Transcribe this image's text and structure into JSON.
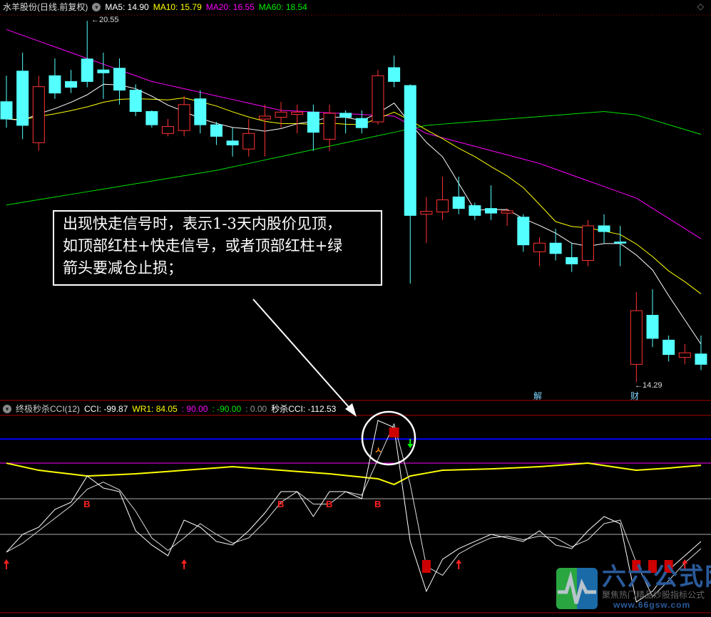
{
  "header": {
    "title": "水羊股份(日线.前复权)",
    "ma5": "MA5: 14.90",
    "ma10": "MA10: 15.79",
    "ma20": "MA20: 16.55",
    "ma60": "MA60: 18.54",
    "colors": {
      "ma5": "#ffffff",
      "ma10": "#ffff00",
      "ma20": "#ff00ff",
      "ma60": "#00e000"
    }
  },
  "indicator_header": {
    "name": "终极秒杀CCI(12)",
    "cci": "CCI: -99.87",
    "wr1": "WR1: 84.05",
    "v90": ": 90.00",
    "vm90": ": -90.00",
    "v0": ": 0.00",
    "mscci": "秒杀CCI: -112.53"
  },
  "price_labels": {
    "high": "20.55",
    "low": "14.29"
  },
  "events": [
    {
      "label": "解",
      "index": 33
    },
    {
      "label": "财",
      "index": 39
    }
  ],
  "annotation": {
    "lines": [
      "出现快走信号时，表示1-3天内股价见顶，",
      "如顶部红柱+快走信号，或者顶部红柱+绿",
      "箭头要减仓止损；"
    ]
  },
  "logo": {
    "name": "六六公式网",
    "slogan": "聚焦热门精品炒股指标公式",
    "url": "www.66gsw.com"
  },
  "colors": {
    "up": "#ff3333",
    "down": "#54ffff",
    "blue_line": "#0000ff",
    "marker_red": "#cc0000"
  },
  "chart_data": [
    {
      "type": "candlestick",
      "ylim": [
        14.0,
        20.85
      ],
      "candles": [
        [
          19.15,
          19.6,
          18.7,
          18.85
        ],
        [
          19.68,
          20.0,
          18.5,
          18.74
        ],
        [
          18.44,
          19.6,
          18.3,
          19.41
        ],
        [
          19.6,
          19.9,
          19.2,
          19.3
        ],
        [
          19.5,
          19.7,
          19.3,
          19.4
        ],
        [
          19.89,
          20.55,
          19.4,
          19.5
        ],
        [
          19.7,
          20.0,
          19.2,
          19.65
        ],
        [
          19.73,
          19.9,
          19.1,
          19.35
        ],
        [
          19.35,
          19.45,
          18.9,
          18.98
        ],
        [
          18.98,
          19.0,
          18.7,
          18.75
        ],
        [
          18.6,
          18.85,
          18.55,
          18.72
        ],
        [
          18.65,
          19.25,
          18.55,
          19.1
        ],
        [
          19.2,
          19.35,
          18.6,
          18.75
        ],
        [
          18.75,
          18.8,
          18.4,
          18.55
        ],
        [
          18.47,
          18.7,
          18.2,
          18.4
        ],
        [
          18.33,
          18.85,
          18.2,
          18.6
        ],
        [
          18.85,
          19.1,
          18.2,
          18.9
        ],
        [
          18.88,
          19.15,
          18.7,
          18.97
        ],
        [
          18.93,
          19.1,
          18.6,
          18.97
        ],
        [
          18.97,
          19.1,
          18.3,
          18.62
        ],
        [
          18.5,
          19.1,
          18.3,
          18.95
        ],
        [
          18.95,
          19.0,
          18.6,
          18.88
        ],
        [
          18.86,
          19.0,
          18.6,
          18.7
        ],
        [
          18.8,
          19.7,
          18.75,
          19.6
        ],
        [
          19.74,
          19.95,
          19.4,
          19.5
        ],
        [
          19.43,
          19.45,
          16.0,
          17.18
        ],
        [
          17.2,
          17.5,
          16.7,
          17.25
        ],
        [
          17.24,
          17.85,
          17.1,
          17.45
        ],
        [
          17.5,
          17.85,
          17.2,
          17.3
        ],
        [
          17.35,
          17.4,
          17.1,
          17.18
        ],
        [
          17.3,
          17.7,
          17.1,
          17.22
        ],
        [
          17.22,
          17.3,
          17.0,
          17.26
        ],
        [
          17.15,
          17.2,
          16.55,
          16.67
        ],
        [
          16.55,
          16.8,
          16.3,
          16.7
        ],
        [
          16.7,
          16.95,
          16.4,
          16.52
        ],
        [
          16.45,
          16.7,
          16.2,
          16.34
        ],
        [
          16.4,
          17.1,
          16.3,
          17.0
        ],
        [
          17.0,
          17.2,
          16.7,
          16.9
        ],
        [
          16.72,
          17.0,
          16.3,
          16.7
        ],
        [
          14.6,
          15.85,
          14.29,
          15.53
        ],
        [
          15.45,
          15.9,
          14.9,
          15.05
        ],
        [
          15.02,
          15.1,
          14.65,
          14.77
        ],
        [
          14.72,
          14.95,
          14.6,
          14.8
        ],
        [
          14.78,
          15.1,
          14.5,
          14.6
        ]
      ],
      "ma20_points": [
        [
          0,
          20.4
        ],
        [
          9,
          19.5
        ],
        [
          17,
          19.0
        ],
        [
          24,
          18.9
        ],
        [
          26,
          18.6
        ],
        [
          33,
          18.08
        ],
        [
          39,
          17.48
        ],
        [
          44,
          16.6
        ]
      ],
      "ma60_points": [
        [
          0,
          17.36
        ],
        [
          13,
          17.96
        ],
        [
          22,
          18.5
        ],
        [
          26,
          18.74
        ],
        [
          37,
          18.98
        ],
        [
          39,
          18.92
        ],
        [
          44,
          18.5
        ]
      ]
    },
    {
      "type": "line",
      "ylim": [
        -508,
        508
      ],
      "levels": {
        "blue": 392,
        "magenta": 270,
        "upper": 90,
        "lower": -90
      },
      "cci_fast": [
        -180,
        -90,
        -54,
        36,
        72,
        205,
        144,
        126,
        -72,
        -144,
        -198,
        -18,
        -54,
        -126,
        -144,
        -72,
        18,
        126,
        126,
        0,
        126,
        126,
        90,
        486,
        450,
        -126,
        -378,
        -216,
        -162,
        -126,
        -90,
        -108,
        -126,
        -72,
        -144,
        -162,
        -72,
        0,
        -36,
        -432,
        -378,
        -270,
        -198,
        -126
      ],
      "cci_slow": [
        -180,
        -135,
        -72,
        -9,
        54,
        138,
        174,
        135,
        27,
        -108,
        -171,
        -108,
        -36,
        -90,
        -135,
        -108,
        -27,
        72,
        126,
        63,
        63,
        126,
        108,
        288,
        468,
        162,
        -252,
        -297,
        -189,
        -144,
        -108,
        -99,
        -117,
        -99,
        -108,
        -153,
        -117,
        -36,
        -18,
        -234,
        -405,
        -324,
        -234,
        -162
      ],
      "yellow_points": [
        [
          0,
          270
        ],
        [
          2,
          234
        ],
        [
          5,
          205
        ],
        [
          8,
          216
        ],
        [
          11,
          234
        ],
        [
          14,
          252
        ],
        [
          17,
          234
        ],
        [
          20,
          216
        ],
        [
          23,
          191
        ],
        [
          24,
          162
        ],
        [
          25,
          205
        ],
        [
          27,
          234
        ],
        [
          30,
          241
        ],
        [
          33,
          252
        ],
        [
          36,
          270
        ],
        [
          39,
          234
        ],
        [
          41,
          245
        ],
        [
          43,
          259
        ]
      ],
      "buy_labels": {
        "text": "B",
        "indices": [
          5,
          17,
          20,
          23
        ]
      },
      "up_arrows": [
        0,
        11,
        28,
        42
      ],
      "red_bars_top": [
        24
      ],
      "red_bars_bottom": [
        26,
        39,
        40,
        41
      ],
      "fast_signal_index": 23,
      "green_arrow_index": 25
    }
  ]
}
